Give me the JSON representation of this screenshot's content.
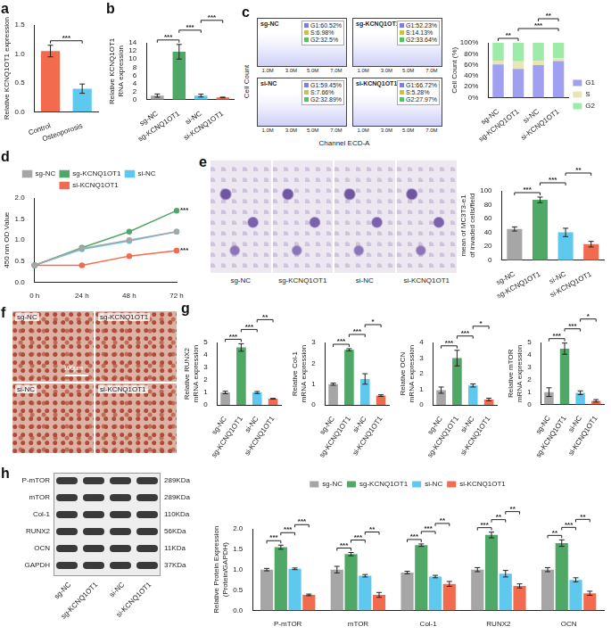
{
  "chart_data": [
    {
      "type": "bar",
      "panel_label": "a",
      "categories": [
        "Control",
        "Osteoporosis"
      ],
      "values": [
        1.05,
        0.4
      ],
      "errors": [
        0.1,
        0.08
      ],
      "colors": [
        "#f26b4f",
        "#5ec8ef"
      ],
      "y_label": "Relative KCNQ1OT1 expression",
      "ylim": [
        0,
        1.5
      ],
      "yticks": [
        {
          "value": 0,
          "label": "0.0"
        },
        {
          "value": 0.5,
          "label": "0.5"
        },
        {
          "value": 1,
          "label": "1.0"
        },
        {
          "value": 1.5,
          "label": "1.5"
        }
      ],
      "grid": false,
      "annotations": [
        {
          "text": "***",
          "from": 0,
          "to": 1
        }
      ]
    },
    {
      "type": "bar",
      "panel_label": "b",
      "categories": [
        "sg-NC",
        "sg-KCNQ1OT1",
        "si-NC",
        "si-KCNQ1OT1"
      ],
      "values": [
        1.0,
        11.8,
        1.0,
        0.55
      ],
      "errors": [
        0.4,
        1.8,
        0.35,
        0.08
      ],
      "colors": [
        "#a6a6a6",
        "#4fa866",
        "#5ec8ef",
        "#f26b4f"
      ],
      "y_label": [
        "Relative KCNQ1OT1",
        "RNA expression"
      ],
      "ylim": [
        0,
        14
      ],
      "yticks": [
        0,
        2,
        4,
        6,
        8,
        10,
        12,
        14
      ],
      "grid": false,
      "annotations": [
        {
          "text": "***",
          "from": 0,
          "to": 1
        },
        {
          "text": "***",
          "from": 1,
          "to": 2
        },
        {
          "text": "***",
          "from": 2,
          "to": 3
        }
      ]
    },
    {
      "type": "bar",
      "stacked": true,
      "categories": [
        "sg-NC",
        "sg-KCNQ1OT1",
        "si-NC",
        "si-KCNQ1OT1"
      ],
      "series": [
        {
          "name": "G1",
          "color": "#9fa0f0",
          "values": [
            60.52,
            52.23,
            59.45,
            66.72
          ]
        },
        {
          "name": "S",
          "color": "#e8e6b4",
          "values": [
            6.98,
            14.13,
            7.66,
            5.28
          ]
        },
        {
          "name": "G2",
          "color": "#9eeaa8",
          "values": [
            32.5,
            33.64,
            32.89,
            27.97
          ]
        }
      ],
      "y_label": "Cell Count (%)",
      "ylim": [
        0,
        100
      ],
      "yticks": [
        {
          "value": 0,
          "label": "0%"
        },
        {
          "value": 20,
          "label": "20%"
        },
        {
          "value": 40,
          "label": "40%"
        },
        {
          "value": 60,
          "label": "60%"
        },
        {
          "value": 80,
          "label": "80%"
        },
        {
          "value": 100,
          "label": "100%"
        }
      ],
      "legend": "right",
      "grid": false,
      "annotations": [
        {
          "text": "**",
          "from": 0,
          "to": 1
        },
        {
          "text": "***",
          "from": 1,
          "to": 3
        },
        {
          "text": "**",
          "from": 2,
          "to": 3
        }
      ]
    },
    {
      "type": "line",
      "panel_label": "d",
      "categories": [
        "0 h",
        "24 h",
        "48 h",
        "72 h"
      ],
      "series": [
        {
          "name": "sg-NC",
          "color": "#a6a6a6",
          "values": [
            0.4,
            0.8,
            1.0,
            1.2
          ]
        },
        {
          "name": "sg-KCNQ1OT1",
          "color": "#4fa866",
          "values": [
            0.4,
            0.82,
            1.2,
            1.7
          ]
        },
        {
          "name": "si-NC",
          "color": "#5ec8ef",
          "values": [
            0.4,
            0.78,
            0.98,
            1.2
          ]
        },
        {
          "name": "si-KCNQ1OT1",
          "color": "#f26b4f",
          "values": [
            0.4,
            0.4,
            0.62,
            0.75
          ]
        }
      ],
      "marker": "circle",
      "y_label": "450 nm OD Value",
      "ylim": [
        0,
        2
      ],
      "yticks": [
        {
          "value": 0,
          "label": "0.0"
        },
        {
          "value": 0.5,
          "label": "0.5"
        },
        {
          "value": 1,
          "label": "1.0"
        },
        {
          "value": 1.5,
          "label": "1.5"
        },
        {
          "value": 2,
          "label": "2.0"
        }
      ],
      "legend": "top",
      "grid": false,
      "annotations": [
        {
          "text": "***",
          "series": 1,
          "index": 3
        },
        {
          "text": "***",
          "series": 3,
          "index": 3
        }
      ]
    },
    {
      "type": "bar",
      "categories": [
        "sg-NC",
        "sg-KCNQ1OT1",
        "si-NC",
        "si-KCNQ1OT1"
      ],
      "values": [
        45,
        87,
        40,
        23
      ],
      "errors": [
        3,
        4,
        6,
        4
      ],
      "colors": [
        "#a6a6a6",
        "#4fa866",
        "#5ec8ef",
        "#f26b4f"
      ],
      "y_label": [
        "mean of MC3T3-e1",
        "of invaded cells/field"
      ],
      "ylim": [
        0,
        100
      ],
      "yticks": [
        0,
        20,
        40,
        60,
        80,
        100
      ],
      "grid": false,
      "annotations": [
        {
          "text": "***",
          "from": 0,
          "to": 1
        },
        {
          "text": "***",
          "from": 1,
          "to": 2
        },
        {
          "text": "**",
          "from": 2,
          "to": 3
        }
      ]
    },
    {
      "type": "bar",
      "panel_label": "g",
      "categories": [
        "sg-NC",
        "sg-KCNQ1OT1",
        "si-NC",
        "si-KCNQ1OT1"
      ],
      "values": [
        1.0,
        4.6,
        1.0,
        0.5
      ],
      "errors": [
        0.1,
        0.3,
        0.08,
        0.03
      ],
      "colors": [
        "#a6a6a6",
        "#4fa866",
        "#5ec8ef",
        "#f26b4f"
      ],
      "y_label": [
        "Relative RUNX2",
        "mRNA expression"
      ],
      "ylim": [
        0,
        5
      ],
      "yticks": [
        0,
        1,
        2,
        3,
        4,
        5
      ],
      "grid": false,
      "annotations": [
        {
          "text": "***",
          "from": 0,
          "to": 1
        },
        {
          "text": "***",
          "from": 1,
          "to": 2
        },
        {
          "text": "**",
          "from": 2,
          "to": 3
        }
      ]
    },
    {
      "type": "bar",
      "categories": [
        "sg-NC",
        "sg-KCNQ1OT1",
        "si-NC",
        "si-KCNQ1OT1"
      ],
      "values": [
        1.0,
        2.65,
        1.25,
        0.45
      ],
      "errors": [
        0.05,
        0.05,
        0.25,
        0.04
      ],
      "colors": [
        "#a6a6a6",
        "#4fa866",
        "#5ec8ef",
        "#f26b4f"
      ],
      "y_label": [
        "Relative Col-1",
        "mRNA expression"
      ],
      "ylim": [
        0,
        3
      ],
      "yticks": [
        0,
        1,
        2,
        3
      ],
      "grid": false,
      "annotations": [
        {
          "text": "***",
          "from": 0,
          "to": 1
        },
        {
          "text": "***",
          "from": 1,
          "to": 2
        },
        {
          "text": "*",
          "from": 2,
          "to": 3
        }
      ]
    },
    {
      "type": "bar",
      "categories": [
        "sg-NC",
        "sg-KCNQ1OT1",
        "si-NC",
        "si-KCNQ1OT1"
      ],
      "values": [
        0.95,
        3.0,
        1.25,
        0.35
      ],
      "errors": [
        0.2,
        0.5,
        0.1,
        0.08
      ],
      "colors": [
        "#a6a6a6",
        "#4fa866",
        "#5ec8ef",
        "#f26b4f"
      ],
      "y_label": [
        "Relative OCN",
        "mRNA expression"
      ],
      "ylim": [
        0,
        4
      ],
      "yticks": [
        0,
        1,
        2,
        3,
        4
      ],
      "grid": false,
      "annotations": [
        {
          "text": "***",
          "from": 0,
          "to": 1
        },
        {
          "text": "***",
          "from": 1,
          "to": 2
        },
        {
          "text": "*",
          "from": 2,
          "to": 3
        }
      ]
    },
    {
      "type": "bar",
      "categories": [
        "sg-NC",
        "sg-KCNQ1OT1",
        "si-NC",
        "si-KCNQ1OT1"
      ],
      "values": [
        1.0,
        4.5,
        0.95,
        0.3
      ],
      "errors": [
        0.35,
        0.45,
        0.15,
        0.1
      ],
      "colors": [
        "#a6a6a6",
        "#4fa866",
        "#5ec8ef",
        "#f26b4f"
      ],
      "y_label": [
        "Relative mTOR",
        "mRNA expression"
      ],
      "ylim": [
        0,
        5
      ],
      "yticks": [
        0,
        1,
        2,
        3,
        4,
        5
      ],
      "grid": false,
      "annotations": [
        {
          "text": "***",
          "from": 0,
          "to": 1
        },
        {
          "text": "***",
          "from": 1,
          "to": 2
        },
        {
          "text": "*",
          "from": 2,
          "to": 3
        }
      ]
    },
    {
      "type": "bar",
      "categories": [
        "P-mTOR",
        "mTOR",
        "Col-1",
        "RUNX2",
        "OCN"
      ],
      "series": [
        {
          "name": "sg-NC",
          "color": "#a6a6a6",
          "values": [
            1.0,
            1.0,
            0.93,
            1.0,
            1.0
          ],
          "errors": [
            0.03,
            0.08,
            0.03,
            0.05,
            0.05
          ]
        },
        {
          "name": "sg-KCNQ1OT1",
          "color": "#4fa866",
          "values": [
            1.55,
            1.38,
            1.6,
            1.85,
            1.65
          ],
          "errors": [
            0.05,
            0.04,
            0.03,
            0.07,
            0.08
          ]
        },
        {
          "name": "si-NC",
          "color": "#5ec8ef",
          "values": [
            1.02,
            0.85,
            0.83,
            0.9,
            0.75
          ],
          "errors": [
            0.02,
            0.03,
            0.03,
            0.08,
            0.05
          ]
        },
        {
          "name": "si-KCNQ1OT1",
          "color": "#f26b4f",
          "values": [
            0.38,
            0.38,
            0.65,
            0.6,
            0.42
          ],
          "errors": [
            0.02,
            0.06,
            0.06,
            0.05,
            0.05
          ]
        }
      ],
      "y_label": [
        "Relative Protein Expression",
        "(Protein/GAPDH)"
      ],
      "ylim": [
        0,
        2
      ],
      "yticks": [
        {
          "value": 0,
          "label": "0.0"
        },
        {
          "value": 0.5,
          "label": "0.5"
        },
        {
          "value": 1,
          "label": "1.0"
        },
        {
          "value": 1.5,
          "label": "1.5"
        },
        {
          "value": 2,
          "label": "2.0"
        }
      ],
      "legend": "top",
      "grid": false,
      "annotations": [
        {
          "text": "***",
          "category": 0,
          "from": 0,
          "to": 1
        },
        {
          "text": "***",
          "category": 0,
          "from": 1,
          "to": 2
        },
        {
          "text": "***",
          "category": 0,
          "from": 2,
          "to": 3
        },
        {
          "text": "***",
          "category": 1,
          "from": 0,
          "to": 1
        },
        {
          "text": "***",
          "category": 1,
          "from": 1,
          "to": 2
        },
        {
          "text": "**",
          "category": 1,
          "from": 2,
          "to": 3
        },
        {
          "text": "***",
          "category": 2,
          "from": 0,
          "to": 1
        },
        {
          "text": "***",
          "category": 2,
          "from": 1,
          "to": 2
        },
        {
          "text": "**",
          "category": 2,
          "from": 2,
          "to": 3
        },
        {
          "text": "***",
          "category": 3,
          "from": 0,
          "to": 1
        },
        {
          "text": "**",
          "category": 3,
          "from": 1,
          "to": 2
        },
        {
          "text": "**",
          "category": 3,
          "from": 2,
          "to": 3
        },
        {
          "text": "**",
          "category": 4,
          "from": 0,
          "to": 1
        },
        {
          "text": "***",
          "category": 4,
          "from": 1,
          "to": 2
        },
        {
          "text": "**",
          "category": 4,
          "from": 2,
          "to": 3
        }
      ]
    }
  ],
  "images": [
    {
      "type": "flow",
      "panel_label": "c",
      "x_label": "Channel ECD-A",
      "y_label": "Cell Count",
      "x_ticks": [
        "1.0M",
        "3.0M",
        "5.0M",
        "7.0M"
      ],
      "panels": [
        {
          "label": "sg-NC",
          "gates": [
            "G1:60.52%",
            "S:6.98%",
            "G2:32.5%"
          ]
        },
        {
          "label": "sg-KCNQ1OT1",
          "gates": [
            "G1:52.23%",
            "S:14.13%",
            "G2:33.64%"
          ]
        },
        {
          "label": "si-NC",
          "gates": [
            "G1:59.45%",
            "S:7.66%",
            "G2:32.89%"
          ]
        },
        {
          "label": "si-KCNQ1OT1",
          "gates": [
            "G1:66.72%",
            "S:5.28%",
            "G2:27.97%"
          ]
        }
      ]
    },
    {
      "type": "micrograph",
      "panel_label": "e",
      "labels": [
        "sg-NC",
        "sg-KCNQ1OT1",
        "si-NC",
        "si-KCNQ1OT1"
      ]
    },
    {
      "type": "stain",
      "panel_label": "f",
      "labels": [
        "sg-NC",
        "sg-KCNQ1OT1",
        "si-NC",
        "si-KCNQ1OT1"
      ],
      "scale_bar": "100μm"
    },
    {
      "type": "blot",
      "panel_label": "h",
      "rows": [
        {
          "name": "P-mTOR",
          "size": "289KDa"
        },
        {
          "name": "mTOR",
          "size": "289KDa"
        },
        {
          "name": "Col-1",
          "size": "110KDa"
        },
        {
          "name": "RUNX2",
          "size": "56KDa"
        },
        {
          "name": "OCN",
          "size": "11KDa"
        },
        {
          "name": "GAPDH",
          "size": "37KDa"
        }
      ],
      "lanes": [
        "sg-NC",
        "sg-KCNQ1OT1",
        "si-NC",
        "si-KCNQ1OT1"
      ]
    }
  ]
}
